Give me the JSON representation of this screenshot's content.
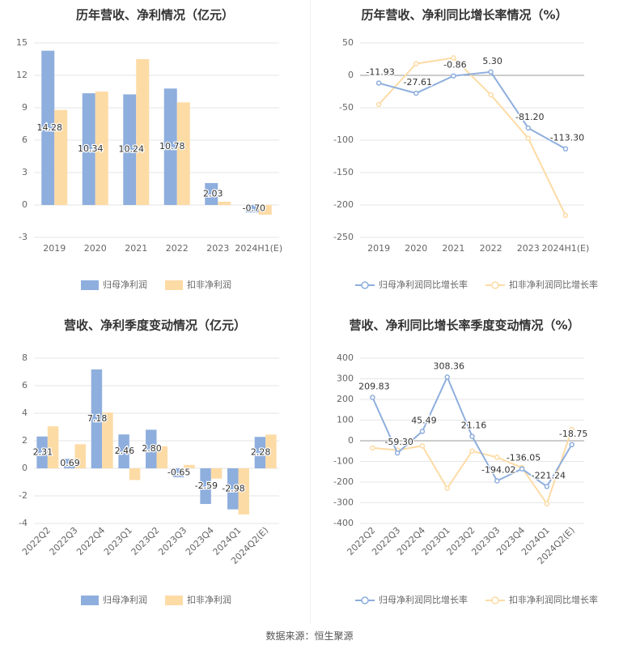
{
  "source_text": "数据来源：恒生聚源",
  "colors": {
    "profit": "#8eaedd",
    "deducted": "#fddba5",
    "grid": "#e6e6e6",
    "axis_text": "#666666",
    "title_text": "#333333",
    "label_text": "#333333"
  },
  "chart_data": [
    {
      "type": "bar",
      "title": "历年营收、净利情况（亿元）",
      "categories": [
        "2019",
        "2020",
        "2021",
        "2022",
        "2023",
        "2024H1(E)"
      ],
      "ylim": [
        -3,
        15
      ],
      "yticks": [
        -3,
        0,
        3,
        6,
        9,
        12,
        15
      ],
      "series": [
        {
          "name": "归母净利润",
          "values": [
            14.28,
            10.34,
            10.24,
            10.78,
            2.03,
            -0.7
          ]
        },
        {
          "name": "扣非净利润",
          "values": [
            8.8,
            10.5,
            13.5,
            9.5,
            0.3,
            -0.9
          ]
        }
      ],
      "data_labels": [
        "14.28",
        "10.34",
        "10.24",
        "10.78",
        "2.03",
        "-0.70"
      ]
    },
    {
      "type": "line",
      "title": "历年营收、净利同比增长率情况（%）",
      "categories": [
        "2019",
        "2020",
        "2021",
        "2022",
        "2023",
        "2024H1(E)"
      ],
      "ylim": [
        -250,
        50
      ],
      "yticks": [
        -250,
        -200,
        -150,
        -100,
        -50,
        0,
        50
      ],
      "series": [
        {
          "name": "归母净利润同比增长率",
          "values": [
            -11.93,
            -27.61,
            -0.86,
            5.3,
            -81.2,
            -113.3
          ]
        },
        {
          "name": "扣非净利润同比增长率",
          "values": [
            -45,
            18,
            27,
            -30,
            -97,
            -216
          ]
        }
      ],
      "data_labels": [
        "-11.93",
        "-27.61",
        "-0.86",
        "5.30",
        "-81.20",
        "-113.30"
      ]
    },
    {
      "type": "bar",
      "title": "营收、净利季度变动情况（亿元）",
      "categories": [
        "2022Q2",
        "2022Q3",
        "2022Q4",
        "2023Q1",
        "2023Q2",
        "2023Q3",
        "2023Q4",
        "2024Q1",
        "2024Q2(E)"
      ],
      "ylim": [
        -4,
        8
      ],
      "yticks": [
        -4,
        -2,
        0,
        2,
        4,
        6,
        8
      ],
      "series": [
        {
          "name": "归母净利润",
          "values": [
            2.31,
            0.69,
            7.18,
            2.46,
            2.8,
            -0.65,
            -2.59,
            -2.98,
            2.28
          ]
        },
        {
          "name": "扣非净利润",
          "values": [
            3.05,
            1.75,
            4.05,
            -0.85,
            1.6,
            0.25,
            -0.75,
            -3.35,
            2.45
          ]
        }
      ],
      "data_labels": [
        "2.31",
        "0.69",
        "7.18",
        "2.46",
        "2.80",
        "-0.65",
        "-2.59",
        "-2.98",
        "2.28"
      ]
    },
    {
      "type": "line",
      "title": "营收、净利同比增长率季度变动情况（%）",
      "categories": [
        "2022Q2",
        "2022Q3",
        "2022Q4",
        "2023Q1",
        "2023Q2",
        "2023Q3",
        "2023Q4",
        "2024Q1",
        "2024Q2(E)"
      ],
      "ylim": [
        -400,
        400
      ],
      "yticks": [
        -400,
        -300,
        -200,
        -100,
        0,
        100,
        200,
        300,
        400
      ],
      "series": [
        {
          "name": "归母净利润同比增长率",
          "values": [
            209.83,
            -59.3,
            45.49,
            308.36,
            21.16,
            -194.02,
            -136.05,
            -221.24,
            -18.75
          ]
        },
        {
          "name": "扣非净利润同比增长率",
          "values": [
            -35,
            -45,
            -25,
            -230,
            -50,
            -80,
            -130,
            -305,
            55
          ]
        }
      ],
      "data_labels": [
        "209.83",
        "-59.30",
        "45.49",
        "308.36",
        "21.16",
        "-194.02",
        "-136.05",
        "-221.24",
        "-18.75"
      ]
    }
  ]
}
